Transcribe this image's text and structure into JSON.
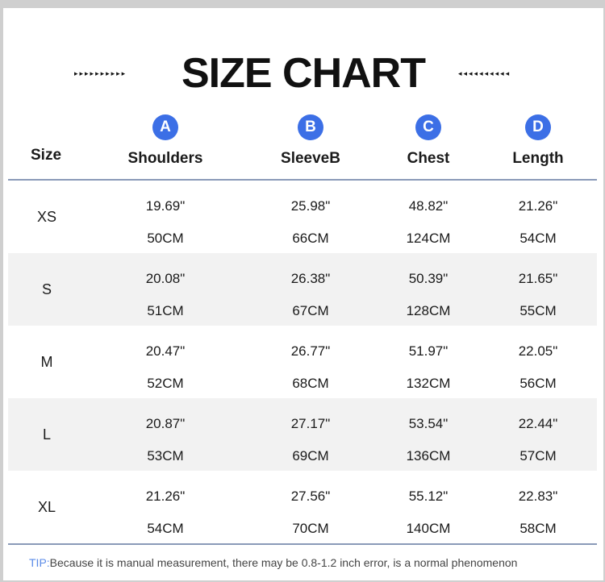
{
  "title": "SIZE CHART",
  "decor": {
    "arrows_left": "▸▸▸▸▸▸▸▸▸▸",
    "arrows_right": "◂◂◂◂◂◂◂◂◂◂"
  },
  "header": {
    "size_label": "Size",
    "columns": [
      {
        "badge": "A",
        "name": "Shoulders"
      },
      {
        "badge": "B",
        "name": "SleeveB"
      },
      {
        "badge": "C",
        "name": "Chest"
      },
      {
        "badge": "D",
        "name": "Length"
      }
    ]
  },
  "rows": [
    {
      "size": "XS",
      "inch": [
        "19.69\"",
        "25.98\"",
        "48.82\"",
        "21.26\""
      ],
      "cm": [
        "50CM",
        "66CM",
        "124CM",
        "54CM"
      ]
    },
    {
      "size": "S",
      "inch": [
        "20.08\"",
        "26.38\"",
        "50.39\"",
        "21.65\""
      ],
      "cm": [
        "51CM",
        "67CM",
        "128CM",
        "55CM"
      ]
    },
    {
      "size": "M",
      "inch": [
        "20.47\"",
        "26.77\"",
        "51.97\"",
        "22.05\""
      ],
      "cm": [
        "52CM",
        "68CM",
        "132CM",
        "56CM"
      ]
    },
    {
      "size": "L",
      "inch": [
        "20.87\"",
        "27.17\"",
        "53.54\"",
        "22.44\""
      ],
      "cm": [
        "53CM",
        "69CM",
        "136CM",
        "57CM"
      ]
    },
    {
      "size": "XL",
      "inch": [
        "21.26\"",
        "27.56\"",
        "55.12\"",
        "22.83\""
      ],
      "cm": [
        "54CM",
        "70CM",
        "140CM",
        "58CM"
      ]
    }
  ],
  "tip": {
    "label": "TIP:",
    "text": "Because it is manual measurement, there may be 0.8-1.2 inch error, is a normal phenomenon"
  },
  "colors": {
    "badge": "#3c6fe6",
    "rule": "#8a9ab8",
    "shade": "#f2f2f2",
    "tip_label": "#5b8be8"
  }
}
